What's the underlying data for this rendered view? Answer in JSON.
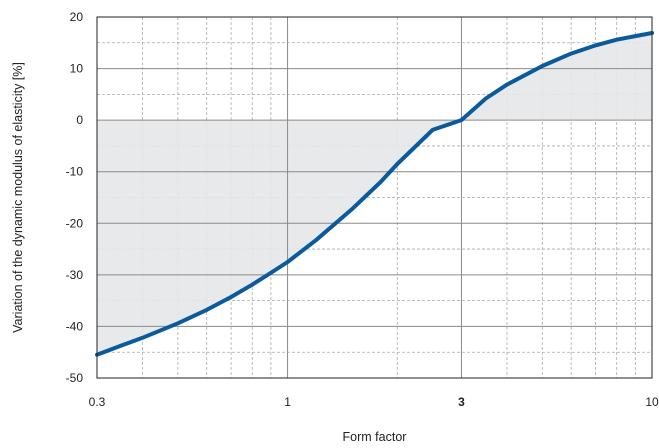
{
  "chart_data": {
    "type": "line",
    "xlabel": "Form factor",
    "ylabel": "Variation of the dynamic modulus of elasticity [%]",
    "x_scale": "log",
    "xlim": [
      0.3,
      10
    ],
    "ylim": [
      -50,
      20
    ],
    "grid": true,
    "x_ticks": [
      {
        "value": 0.3,
        "label": "0.3",
        "bold": false
      },
      {
        "value": 1,
        "label": "1",
        "bold": false
      },
      {
        "value": 3,
        "label": "3",
        "bold": true
      },
      {
        "value": 10,
        "label": "10",
        "bold": false
      }
    ],
    "y_ticks": [
      {
        "value": 20,
        "label": "20"
      },
      {
        "value": 10,
        "label": "10"
      },
      {
        "value": 0,
        "label": "0"
      },
      {
        "value": -10,
        "label": "-10"
      },
      {
        "value": -20,
        "label": "-20"
      },
      {
        "value": -30,
        "label": "-30"
      },
      {
        "value": -40,
        "label": "-40"
      },
      {
        "value": -50,
        "label": "-50"
      }
    ],
    "series": [
      {
        "color": "#0a5a9c",
        "fill_to_zero": true,
        "fill_color": "#e6e7e9",
        "x": [
          0.3,
          0.35,
          0.4,
          0.5,
          0.6,
          0.7,
          0.8,
          0.9,
          1.0,
          1.2,
          1.5,
          1.8,
          2.0,
          2.5,
          3.0,
          3.5,
          4.0,
          5.0,
          6.0,
          7.0,
          8.0,
          9.0,
          10.0
        ],
        "y": [
          -45.5,
          -43.7,
          -42.2,
          -39.4,
          -36.8,
          -34.3,
          -31.9,
          -29.6,
          -27.5,
          -23.2,
          -17.3,
          -12.0,
          -8.5,
          -1.9,
          0.0,
          4.2,
          6.9,
          10.5,
          12.9,
          14.5,
          15.6,
          16.3,
          16.9
        ]
      }
    ]
  }
}
